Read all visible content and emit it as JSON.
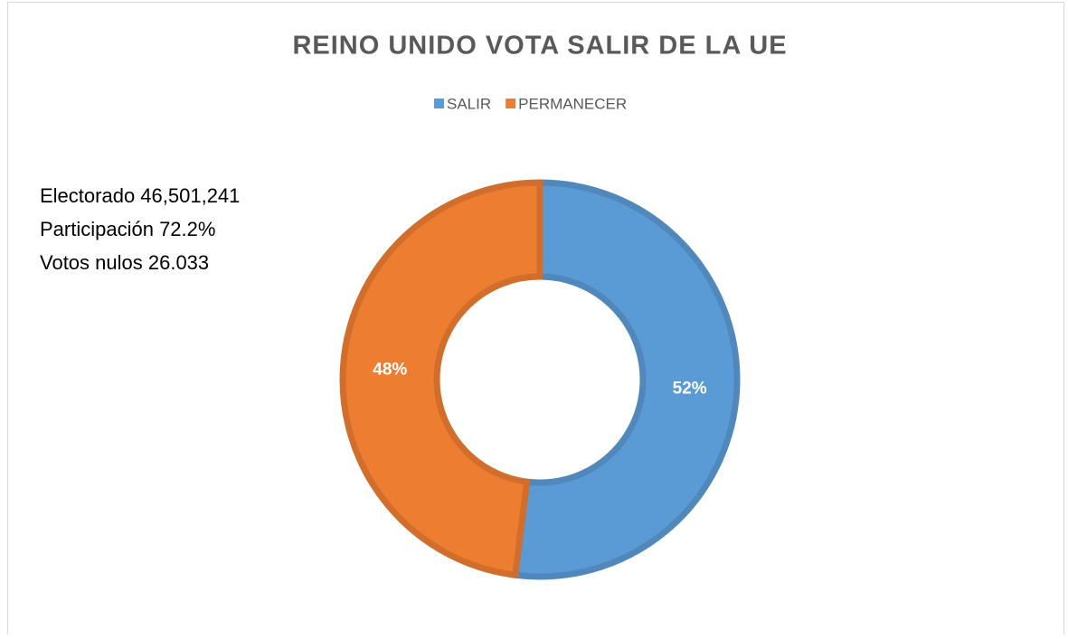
{
  "chart_data": {
    "type": "donut",
    "title": "REINO UNIDO VOTA SALIR DE LA UE",
    "categories": [
      "SALIR",
      "PERMANECER"
    ],
    "values": [
      52,
      48
    ],
    "value_labels": [
      "52%",
      "48%"
    ],
    "colors": [
      "#5b9bd5",
      "#ed7d31"
    ],
    "legend": "top",
    "annotations": [
      "Electorado 46,501,241",
      "Participación 72.2%",
      "Votos nulos 26.033"
    ]
  }
}
